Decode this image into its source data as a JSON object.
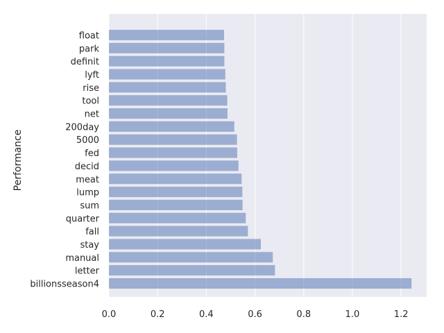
{
  "chart_data": {
    "type": "bar",
    "orientation": "horizontal",
    "categories": [
      "billionsseason4",
      "letter",
      "manual",
      "stay",
      "fall",
      "quarter",
      "sum",
      "lump",
      "meat",
      "decid",
      "fed",
      "5000",
      "200day",
      "net",
      "tool",
      "rise",
      "lyft",
      "definit",
      "park",
      "float"
    ],
    "values": [
      1.243,
      0.682,
      0.673,
      0.624,
      0.571,
      0.562,
      0.549,
      0.548,
      0.545,
      0.532,
      0.527,
      0.526,
      0.515,
      0.487,
      0.486,
      0.48,
      0.478,
      0.474,
      0.474,
      0.473
    ],
    "title": "",
    "xlabel": "",
    "ylabel": "Performance",
    "xlim": [
      0,
      1.305
    ],
    "xticks": [
      "0.0",
      "0.2",
      "0.4",
      "0.6",
      "0.8",
      "1.0",
      "1.2"
    ],
    "bar_color": "#4c72b0",
    "bar_alpha": 0.5,
    "background_color": "#eaeaf2",
    "grid": true
  }
}
